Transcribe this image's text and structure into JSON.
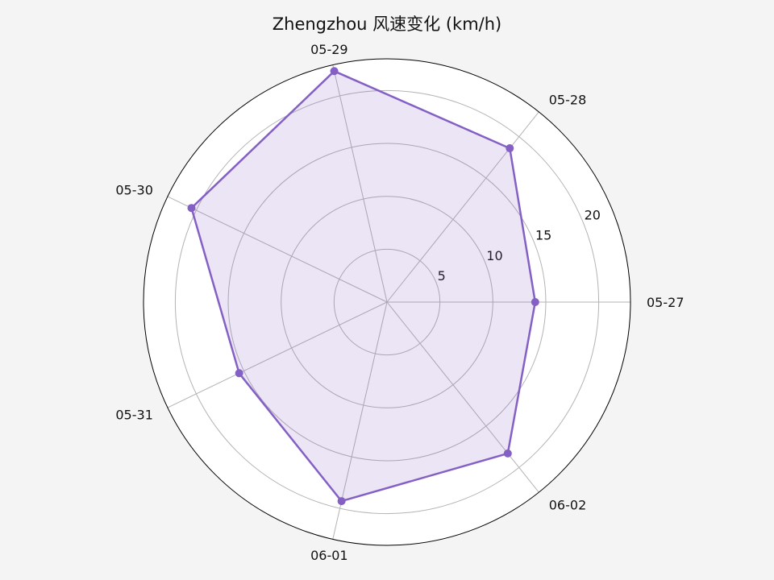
{
  "chart_data": {
    "type": "radar",
    "title": "Zhengzhou 风速变化 (km/h)",
    "categories": [
      "05-27",
      "05-28",
      "05-29",
      "05-30",
      "05-31",
      "06-01",
      "06-02"
    ],
    "series": [
      {
        "values": [
          14.0,
          18.6,
          22.4,
          20.5,
          15.5,
          19.3,
          18.3
        ]
      }
    ],
    "r_ticks": [
      5,
      10,
      15,
      20
    ],
    "rlim": [
      0,
      23
    ],
    "grid": true,
    "colors": {
      "line": "#8460c4",
      "fill": "#8460c4",
      "grid": "#b3b3b3",
      "outer": "#000000"
    }
  }
}
